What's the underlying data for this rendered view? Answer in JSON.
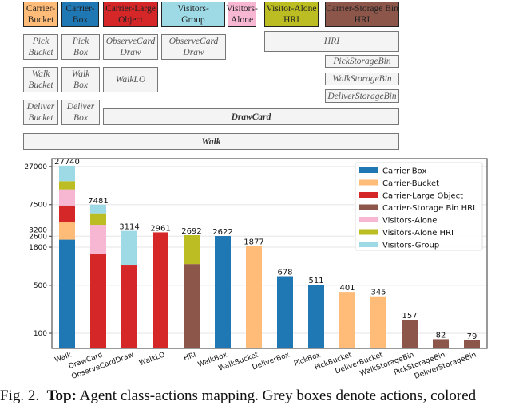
{
  "mapping": {
    "classes": [
      {
        "label": "Carrier-\nBucket",
        "color": "#ffbb78"
      },
      {
        "label": "Carrier-\nBox",
        "color": "#1f77b4"
      },
      {
        "label": "Carrier-Large\nObject",
        "color": "#d62728"
      },
      {
        "label": "Visitors-\nGroup",
        "color": "#9edae5"
      },
      {
        "label": "Visitors-\nAlone",
        "color": "#f7b6d2"
      },
      {
        "label": "Visitor-Alone\nHRI",
        "color": "#bcbd22"
      },
      {
        "label": "Carrier-Storage Bin\nHRI",
        "color": "#8c564b"
      }
    ],
    "actions": {
      "pick_bucket": "Pick\nBucket",
      "pick_box": "Pick\nBox",
      "observe_lo": "ObserveCard\nDraw",
      "observe_group": "ObserveCard\nDraw",
      "hri": "HRI",
      "pick_storage": "PickStorageBin",
      "walk_storage": "WalkStorageBin",
      "deliver_storage": "DeliverStorageBin",
      "walk_bucket": "Walk\nBucket",
      "walk_box": "Walk\nBox",
      "walk_lo": "WalkLO",
      "deliver_bucket": "Deliver\nBucket",
      "deliver_box": "Deliver\nBox",
      "drawcard": "DrawCard",
      "walk": "Walk"
    }
  },
  "chart_data": {
    "type": "bar",
    "stacked": true,
    "yscale": "log",
    "ylim": [
      60,
      30000
    ],
    "yticks": [
      100,
      500,
      1800,
      2600,
      3200,
      7500,
      27000
    ],
    "grid": true,
    "legend_position": "top-right",
    "categories": [
      "Walk",
      "DrawCard",
      "ObserveCardDraw",
      "WalkLO",
      "HRI",
      "WalkBox",
      "WalkBucket",
      "DeliverBox",
      "PickBox",
      "PickBucket",
      "DeliverBucket",
      "WalkStorageBin",
      "PickStorageBin",
      "DeliverStorageBin"
    ],
    "totals": [
      27740,
      7481,
      3114,
      2961,
      2692,
      2622,
      1877,
      678,
      511,
      401,
      345,
      157,
      82,
      79
    ],
    "series": [
      {
        "name": "Carrier-Box",
        "color": "#1f77b4",
        "values": [
          2320,
          0,
          0,
          0,
          0,
          2622,
          0,
          678,
          511,
          0,
          0,
          0,
          0,
          0
        ]
      },
      {
        "name": "Carrier-Bucket",
        "color": "#ffbb78",
        "values": [
          1810,
          0,
          0,
          0,
          0,
          0,
          1877,
          0,
          0,
          401,
          345,
          0,
          0,
          0
        ]
      },
      {
        "name": "Carrier-Large Object",
        "color": "#d62728",
        "values": [
          2980,
          1416,
          973,
          2961,
          0,
          0,
          0,
          0,
          0,
          0,
          0,
          0,
          0,
          0
        ]
      },
      {
        "name": "Carrier-Storage Bin HRI",
        "color": "#8c564b",
        "values": [
          190,
          0,
          0,
          0,
          1023,
          0,
          0,
          0,
          0,
          0,
          0,
          157,
          82,
          79
        ]
      },
      {
        "name": "Visitors-Alone",
        "color": "#f7b6d2",
        "values": [
          5200,
          2394,
          0,
          0,
          0,
          0,
          0,
          0,
          0,
          0,
          0,
          0,
          0,
          0
        ]
      },
      {
        "name": "Visitors-Alone HRI",
        "color": "#bcbd22",
        "values": [
          4000,
          1790,
          0,
          0,
          1669,
          0,
          0,
          0,
          0,
          0,
          0,
          0,
          0,
          0
        ]
      },
      {
        "name": "Visitors-Group",
        "color": "#9edae5",
        "values": [
          11240,
          1881,
          2141,
          0,
          0,
          0,
          0,
          0,
          0,
          0,
          0,
          0,
          0,
          0
        ]
      }
    ]
  },
  "caption": {
    "fig": "Fig. 2.",
    "bold": "Top:",
    "text": " Agent class-actions mapping. Grey boxes denote actions, colored"
  }
}
